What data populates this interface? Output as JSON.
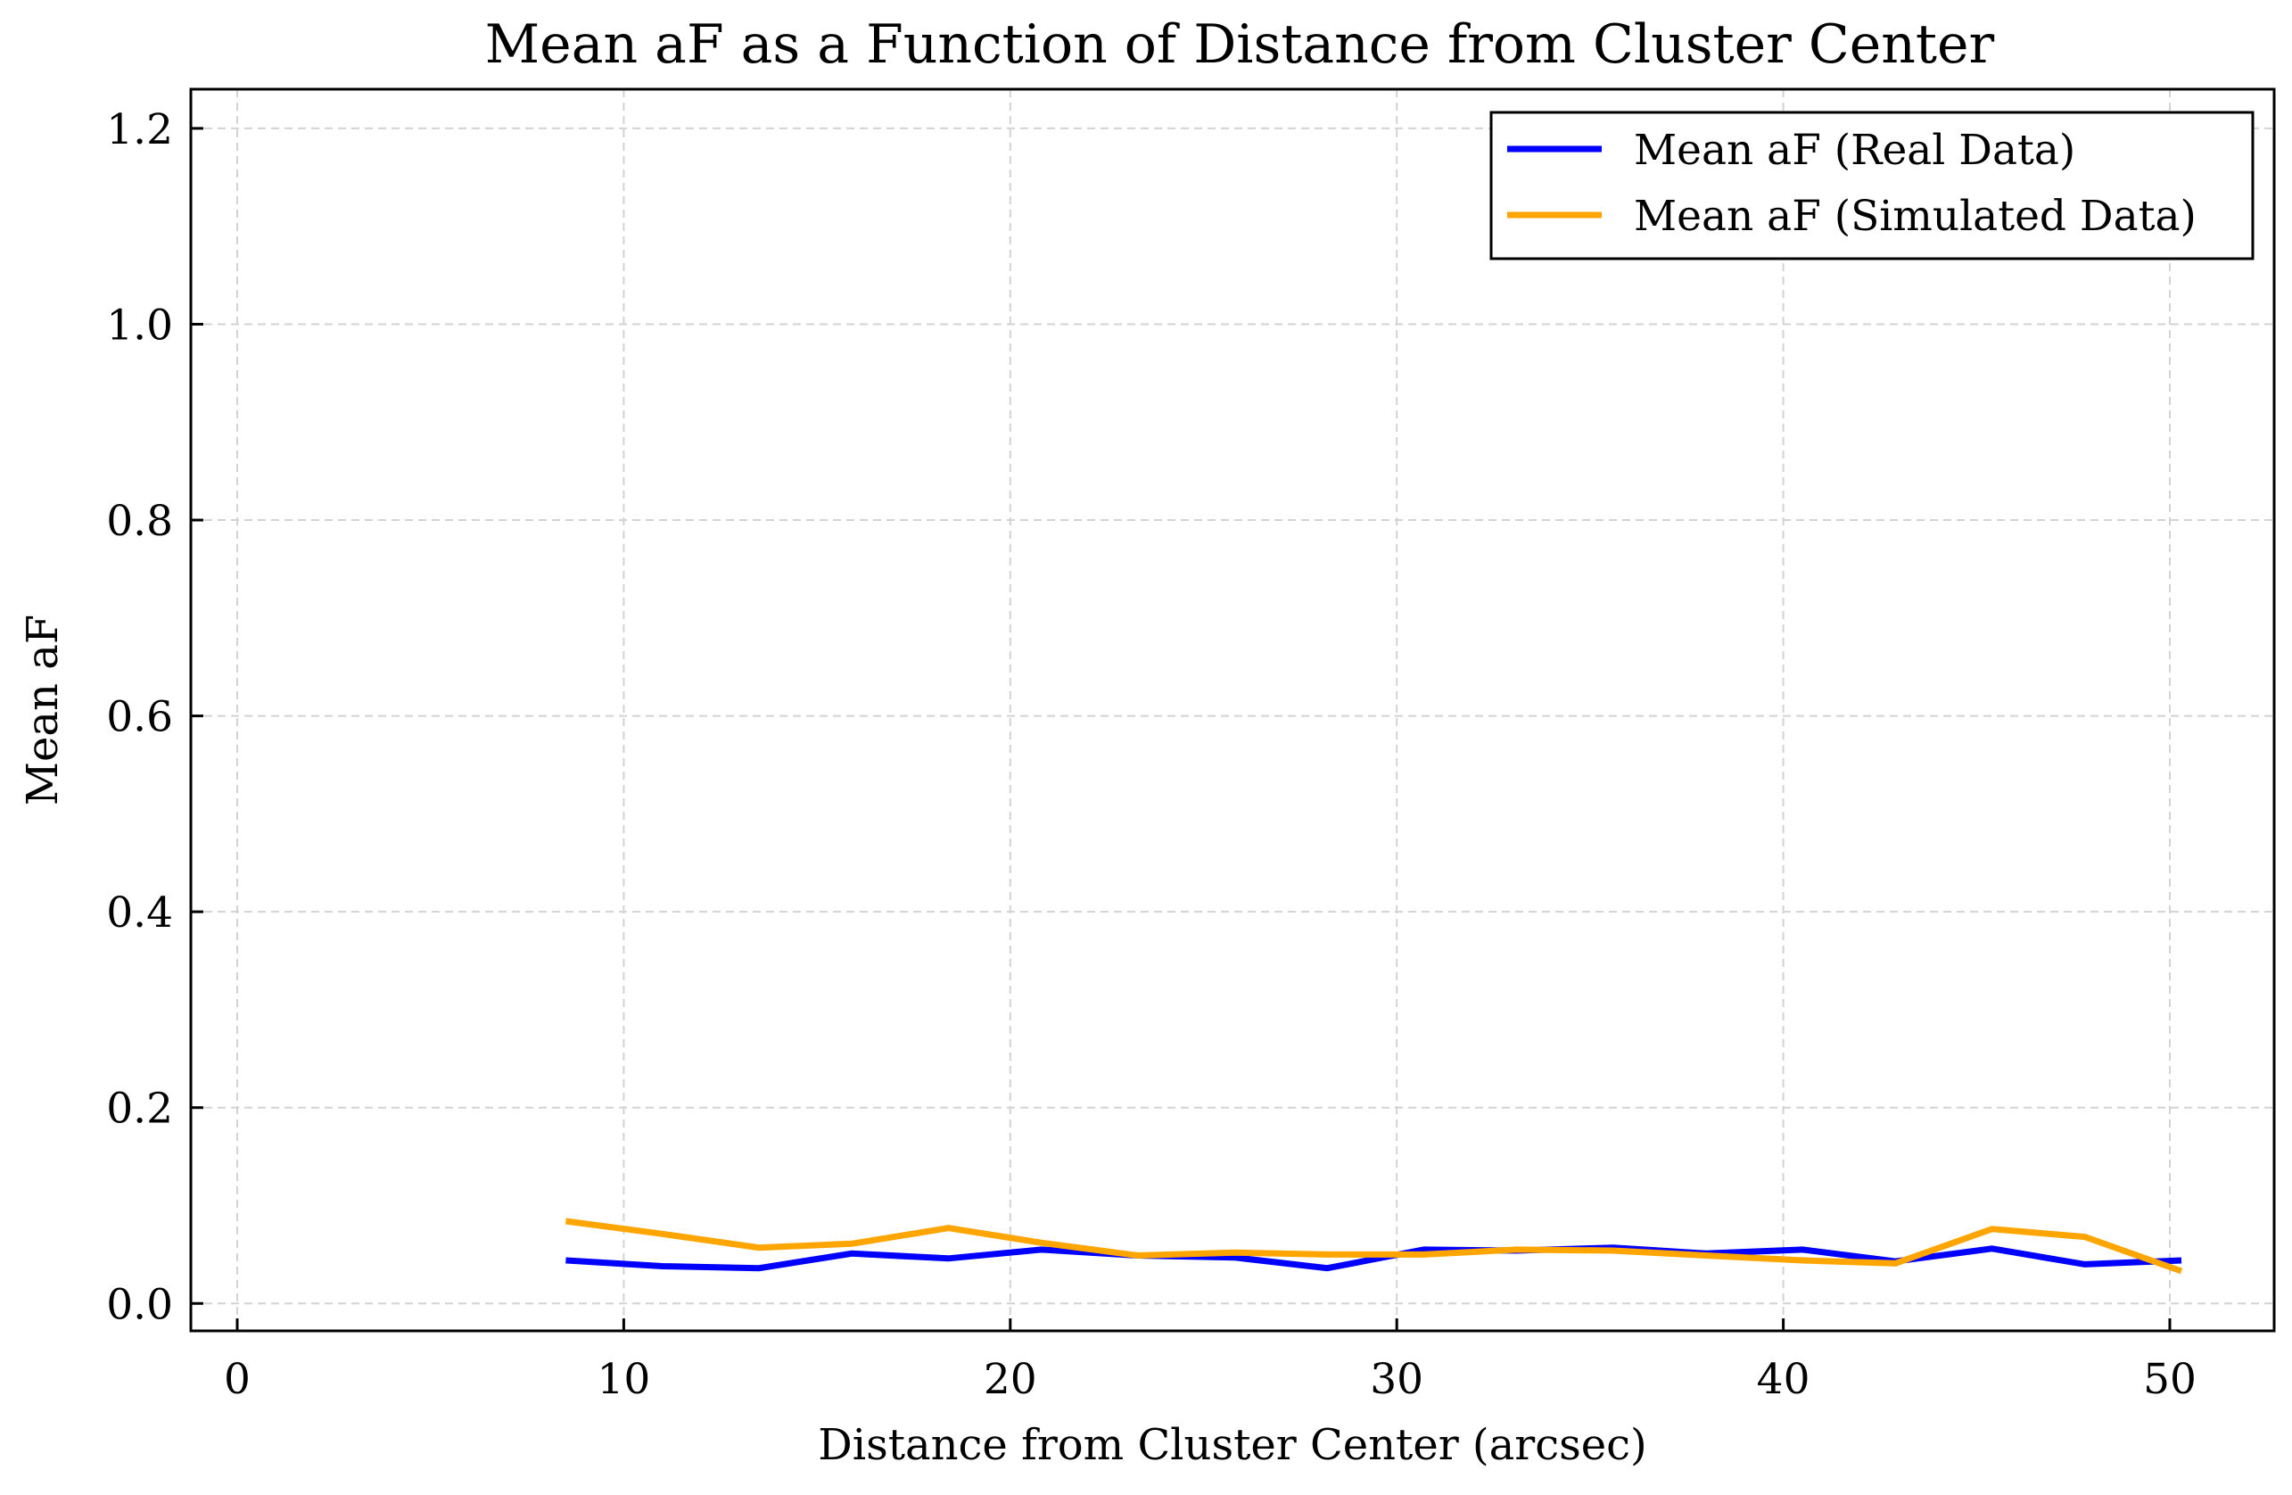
{
  "chart_data": {
    "type": "line",
    "title": "Mean aF as a Function of Distance from Cluster Center",
    "xlabel": "Distance from Cluster Center (arcsec)",
    "ylabel": "Mean aF",
    "xlim": [
      -1.2,
      52.7
    ],
    "ylim": [
      -0.028,
      1.24
    ],
    "xticks": [
      0,
      10,
      20,
      30,
      40,
      50
    ],
    "xtick_labels": [
      "0",
      "10",
      "20",
      "30",
      "40",
      "50"
    ],
    "yticks": [
      0.0,
      0.2,
      0.4,
      0.6,
      0.8,
      1.0,
      1.2
    ],
    "ytick_labels": [
      "0.0",
      "0.2",
      "0.4",
      "0.6",
      "0.8",
      "1.0",
      "1.2"
    ],
    "grid": true,
    "legend_position": "top-right",
    "x": [
      8.5,
      11.0,
      13.5,
      15.9,
      18.4,
      20.8,
      23.3,
      25.8,
      28.2,
      30.7,
      33.1,
      35.6,
      38.0,
      40.5,
      42.9,
      45.4,
      47.8,
      50.3
    ],
    "series": [
      {
        "name": "Mean aF (Real Data)",
        "color": "#0000ff",
        "values": [
          0.044,
          0.038,
          0.036,
          0.051,
          0.046,
          0.055,
          0.049,
          0.047,
          0.036,
          0.055,
          0.054,
          0.057,
          0.051,
          0.055,
          0.043,
          0.056,
          0.04,
          0.044
        ]
      },
      {
        "name": "Mean aF (Simulated Data)",
        "color": "#ffa500",
        "values": [
          0.084,
          0.071,
          0.057,
          0.061,
          0.077,
          0.062,
          0.049,
          0.052,
          0.05,
          0.05,
          0.055,
          0.054,
          0.049,
          0.044,
          0.041,
          0.076,
          0.068,
          0.033
        ]
      }
    ]
  }
}
